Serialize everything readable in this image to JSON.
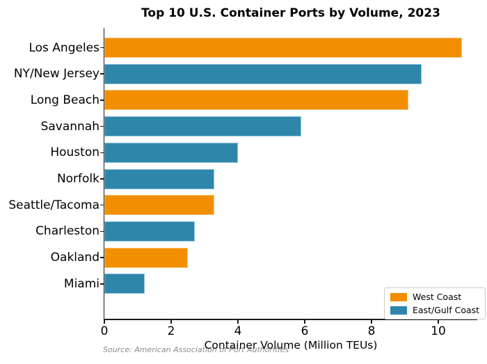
{
  "chart_data": {
    "type": "bar",
    "orientation": "horizontal",
    "title": "Top 10 U.S. Container Ports by Volume, 2023",
    "xlabel": "Container Volume (Million TEUs)",
    "ylabel": "",
    "source_note": "Source: American Association of Port Authorities",
    "categories": [
      "Los Angeles",
      "NY/New Jersey",
      "Long Beach",
      "Savannah",
      "Houston",
      "Norfolk",
      "Seattle/Tacoma",
      "Charleston",
      "Oakland",
      "Miami"
    ],
    "values": [
      10.7,
      9.5,
      9.1,
      5.9,
      4.0,
      3.3,
      3.3,
      2.7,
      2.5,
      1.2
    ],
    "groups": [
      "west",
      "east",
      "west",
      "east",
      "east",
      "east",
      "west",
      "east",
      "west",
      "east"
    ],
    "colors": {
      "west": "#F18F01",
      "east": "#2E86AB"
    },
    "xticks": [
      0,
      2,
      4,
      6,
      8,
      10
    ],
    "xlim": [
      0,
      11.2
    ],
    "grid": false,
    "legend": {
      "position": "lower-right",
      "entries": [
        {
          "label": "West Coast",
          "color": "#F18F01",
          "group": "west"
        },
        {
          "label": "East/Gulf Coast",
          "color": "#2E86AB",
          "group": "east"
        }
      ]
    }
  }
}
